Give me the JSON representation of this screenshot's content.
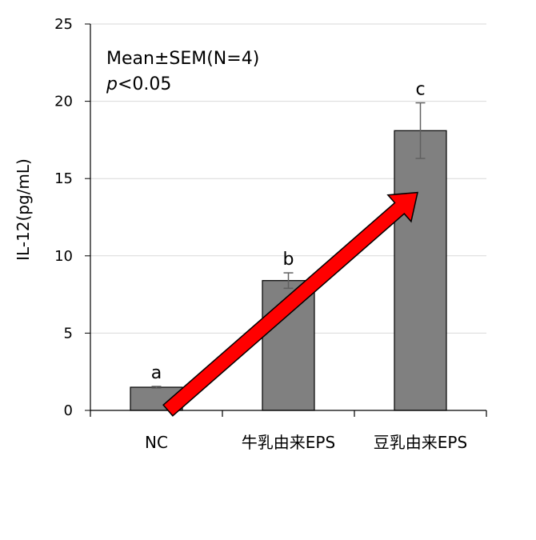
{
  "chart_data": {
    "type": "bar",
    "categories": [
      "NC",
      "牛乳由来EPS",
      "豆乳由来EPS"
    ],
    "values": [
      1.5,
      8.4,
      18.1
    ],
    "error": [
      0.05,
      0.5,
      1.8
    ],
    "significance_letters": [
      "a",
      "b",
      "c"
    ],
    "ylabel": "IL-12(pg/mL)",
    "ylim": [
      0,
      25
    ],
    "yticks": [
      0,
      5,
      10,
      15,
      20,
      25
    ],
    "grid": true,
    "bar_color": "#808080",
    "arrow_color": "#ff0000",
    "annotation_line1": "Mean±SEM(N=4)",
    "annotation_p_italic": "p",
    "annotation_p_rest": "<0.05"
  }
}
